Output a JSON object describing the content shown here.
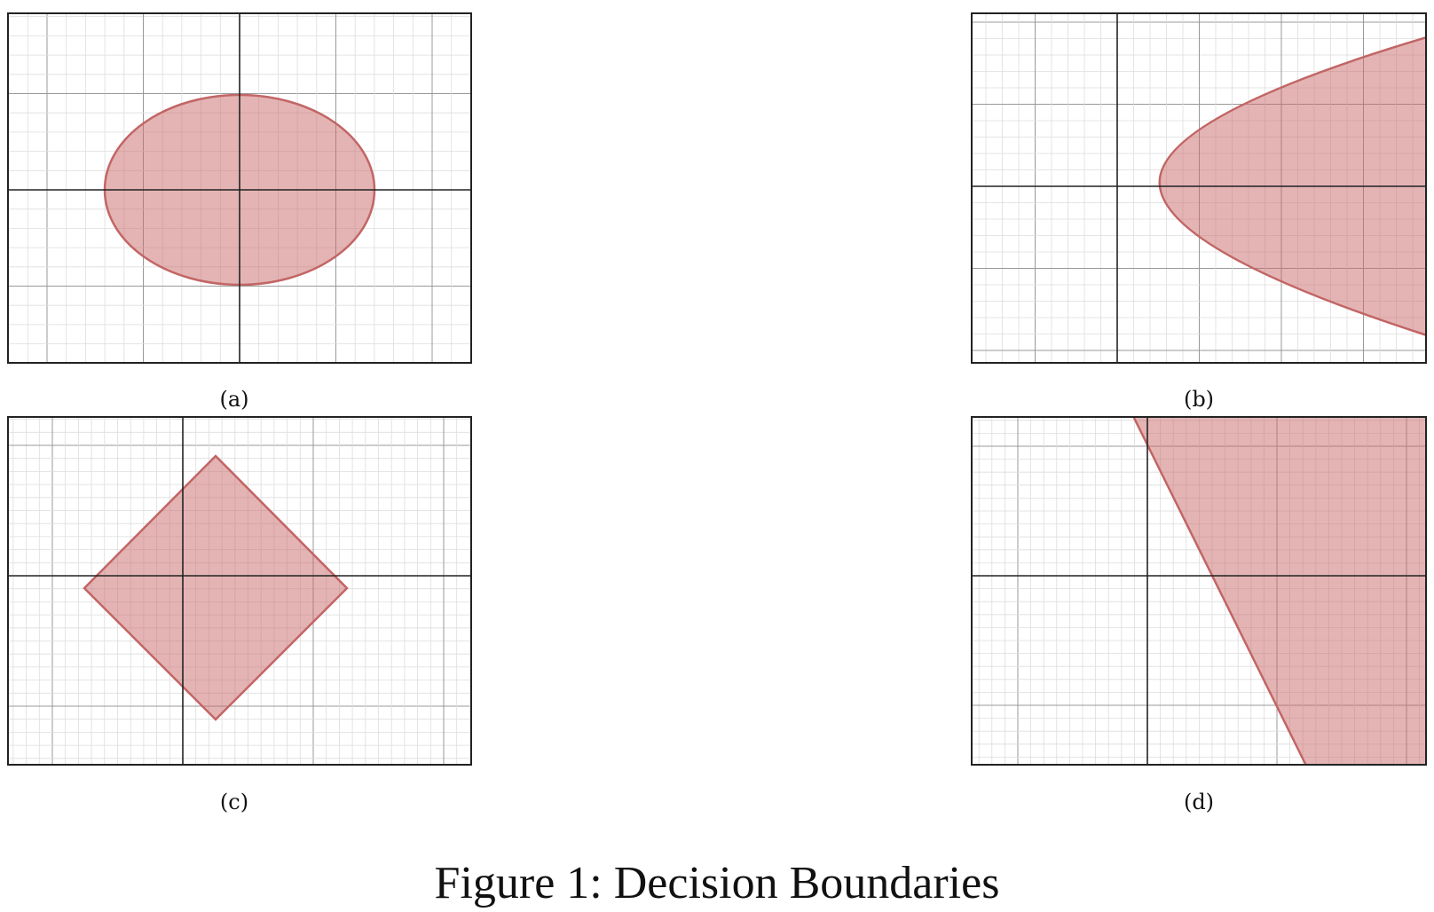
{
  "figure": {
    "caption": "Figure 1: Decision Boundaries"
  },
  "colors": {
    "fill": "#c96a6a",
    "stroke": "#c26565",
    "frame": "#222222",
    "axis": "#222222",
    "grid_minor": "#dddddd",
    "grid_major": "#999999"
  },
  "panels": [
    {
      "id": "a",
      "label": "(a)",
      "region": "ellipse"
    },
    {
      "id": "b",
      "label": "(b)",
      "region": "parabola"
    },
    {
      "id": "c",
      "label": "(c)",
      "region": "diamond"
    },
    {
      "id": "d",
      "label": "(d)",
      "region": "half-plane"
    }
  ]
}
